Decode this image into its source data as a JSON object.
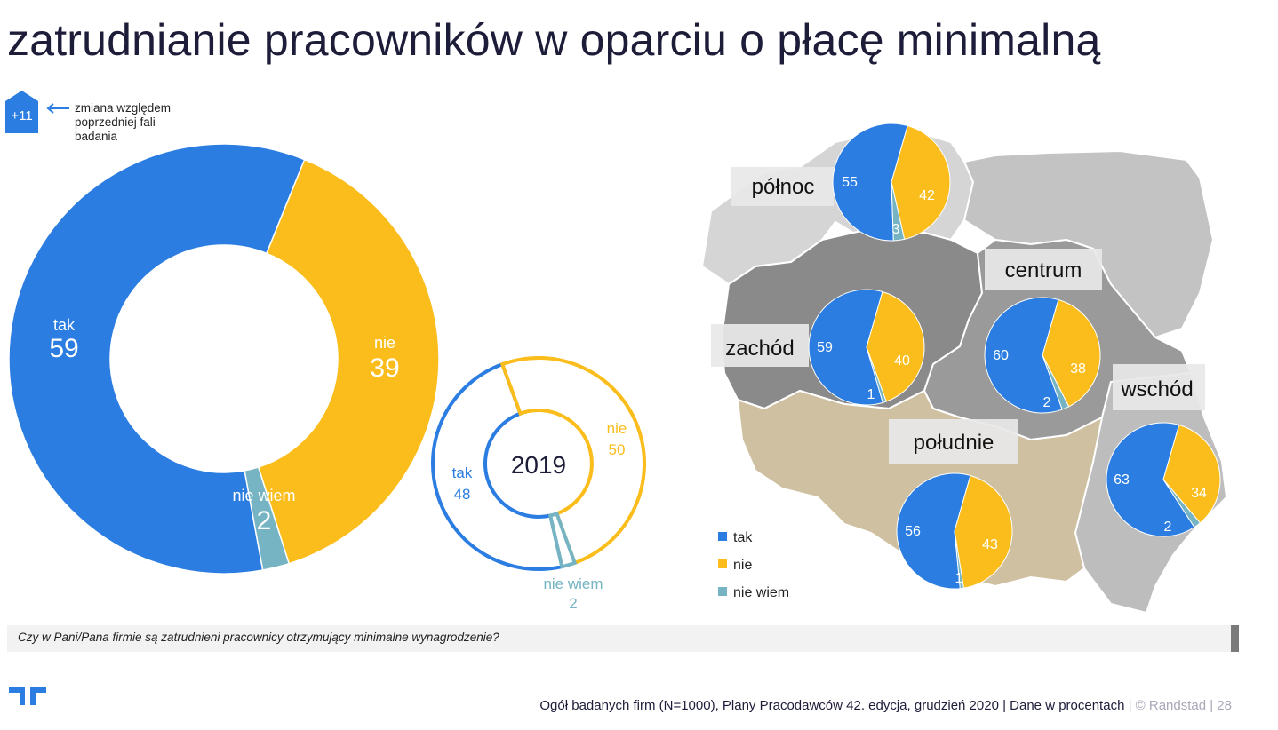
{
  "title": "zatrudnianie pracowników w oparciu o płacę minimalną",
  "badge": {
    "value": "+11",
    "note": "zmiana względem poprzedniej fali badania"
  },
  "colors": {
    "tak": "#2b7de1",
    "nie": "#fbbd1c",
    "nie_wiem": "#76b4c3",
    "text_dark": "#1d1d3a"
  },
  "chart_data": [
    {
      "type": "donut",
      "name": "2020",
      "categories": [
        "tak",
        "nie",
        "nie wiem"
      ],
      "values": [
        59,
        39,
        2
      ],
      "value_labels": [
        "59",
        "39",
        "2"
      ]
    },
    {
      "type": "donut",
      "name": "2019",
      "center_label": "2019",
      "categories": [
        "tak",
        "nie",
        "nie wiem"
      ],
      "values": [
        48,
        50,
        2
      ],
      "value_labels": [
        "48",
        "50",
        "2"
      ]
    },
    {
      "type": "pie",
      "region": "północ",
      "categories": [
        "tak",
        "nie",
        "nie wiem"
      ],
      "values": [
        55,
        42,
        3
      ]
    },
    {
      "type": "pie",
      "region": "zachód",
      "categories": [
        "tak",
        "nie",
        "nie wiem"
      ],
      "values": [
        59,
        40,
        1
      ]
    },
    {
      "type": "pie",
      "region": "centrum",
      "categories": [
        "tak",
        "nie",
        "nie wiem"
      ],
      "values": [
        60,
        38,
        2
      ]
    },
    {
      "type": "pie",
      "region": "wschód",
      "categories": [
        "tak",
        "nie",
        "nie wiem"
      ],
      "values": [
        63,
        34,
        2
      ]
    },
    {
      "type": "pie",
      "region": "południe",
      "categories": [
        "tak",
        "nie",
        "nie wiem"
      ],
      "values": [
        56,
        43,
        1
      ]
    }
  ],
  "legend": [
    "tak",
    "nie",
    "nie wiem"
  ],
  "question": "Czy w Pani/Pana firmie są zatrudnieni pracownicy otrzymujący minimalne wynagrodzenie?",
  "footer": {
    "source": "Ogół badanych firm (N=1000), Plany Pracodawców 42. edycja, grudzień 2020  |  Dane w procentach",
    "brand": "  |  © Randstad  |  28"
  }
}
